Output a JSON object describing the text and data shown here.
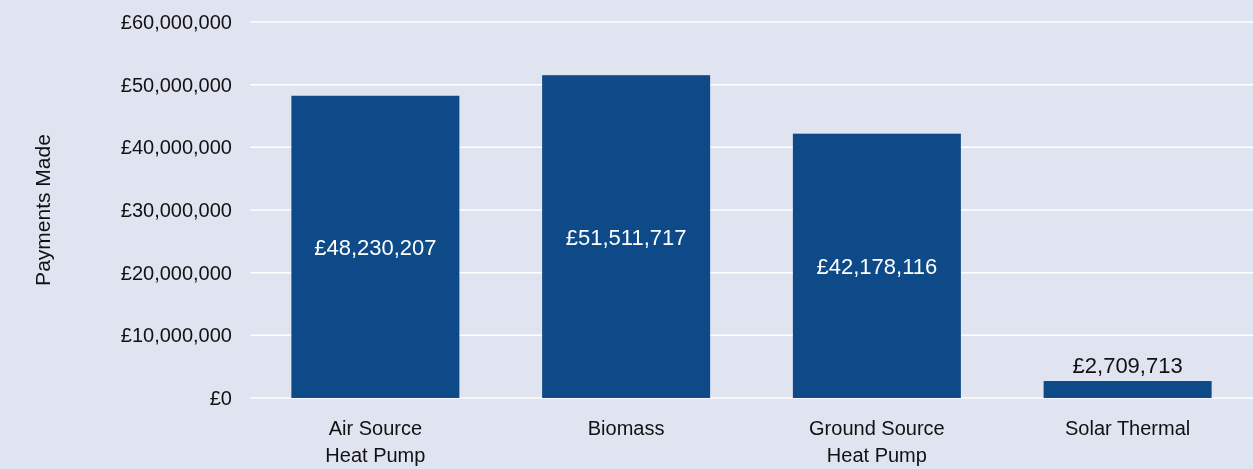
{
  "chart_data": {
    "type": "bar",
    "ylabel": "Payments Made",
    "categories": [
      "Air Source Heat Pump",
      "Biomass",
      "Ground Source Heat Pump",
      "Solar Thermal"
    ],
    "values": [
      48230207,
      51511717,
      42178116,
      2709713
    ],
    "color": "#0e4a87",
    "value_labels": [
      "£48,230,207",
      "£51,511,717",
      "£42,178,116",
      "£2,709,713"
    ],
    "ylim": [
      0,
      60000000
    ],
    "yticks": [
      {
        "value": 0,
        "label": "£0"
      },
      {
        "value": 10000000,
        "label": "£10,000,000"
      },
      {
        "value": 20000000,
        "label": "£20,000,000"
      },
      {
        "value": 30000000,
        "label": "£30,000,000"
      },
      {
        "value": 40000000,
        "label": "£40,000,000"
      },
      {
        "value": 50000000,
        "label": "£50,000,000"
      },
      {
        "value": 60000000,
        "label": "£60,000,000"
      }
    ],
    "grid": "y"
  }
}
